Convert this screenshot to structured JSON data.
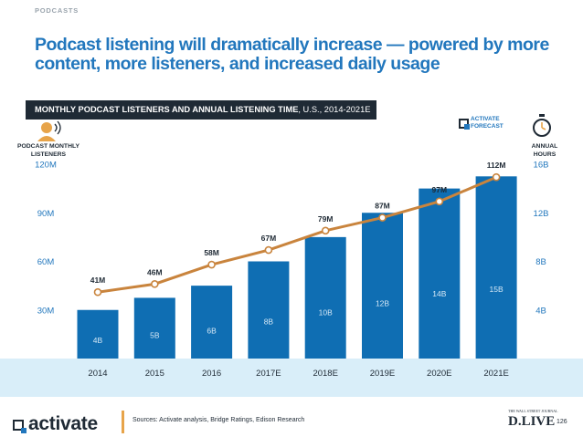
{
  "header": {
    "section": "PODCASTS",
    "title": "Podcast listening will dramatically increase — powered by more content, more listeners, and increased daily usage"
  },
  "banner": {
    "bold": "MONTHLY PODCAST LISTENERS AND ANNUAL LISTENING TIME",
    "rest": ", U.S., 2014-2021E"
  },
  "axis_titles": {
    "left_line1": "PODCAST MONTHLY",
    "left_line2": "LISTENERS",
    "right_line1": "ANNUAL",
    "right_line2": "HOURS"
  },
  "forecast_label": {
    "line1": "ACTIVATE",
    "line2": "FORECAST"
  },
  "footer": {
    "logo": "activate",
    "source": "Sources: Activate analysis, Bridge Ratings, Edison Research",
    "wsj": "THE WALL STREET JOURNAL",
    "brand": "D.LIVE",
    "page": "126"
  },
  "colors": {
    "bar": "#0f6eb3",
    "line": "#c9843d",
    "axis_text": "#2277bd",
    "band": "#d9eef9",
    "dark": "#1f2a35"
  },
  "chart_data": {
    "type": "bar",
    "title": "Monthly podcast listeners and annual listening time, U.S., 2014-2021E",
    "categories": [
      "2014",
      "2015",
      "2016",
      "2017E",
      "2018E",
      "2019E",
      "2020E",
      "2021E"
    ],
    "series": [
      {
        "name": "Annual hours",
        "type": "bar",
        "axis": "right",
        "values": [
          4,
          5,
          6,
          8,
          10,
          12,
          14,
          15
        ],
        "labels": [
          "4B",
          "5B",
          "6B",
          "8B",
          "10B",
          "12B",
          "14B",
          "15B"
        ]
      },
      {
        "name": "Podcast monthly listeners",
        "type": "line",
        "axis": "left",
        "values": [
          41,
          46,
          58,
          67,
          79,
          87,
          97,
          112
        ],
        "labels": [
          "41M",
          "46M",
          "58M",
          "67M",
          "79M",
          "87M",
          "97M",
          "112M"
        ]
      }
    ],
    "left_axis": {
      "ylim": [
        0,
        120
      ],
      "ticks": [
        30,
        60,
        90,
        120
      ],
      "tick_labels": [
        "30M",
        "60M",
        "90M",
        "120M"
      ]
    },
    "right_axis": {
      "ylim": [
        0,
        16
      ],
      "ticks": [
        4,
        8,
        12,
        16
      ],
      "tick_labels": [
        "4B",
        "8B",
        "12B",
        "16B"
      ]
    },
    "grid": false,
    "legend": "none"
  }
}
